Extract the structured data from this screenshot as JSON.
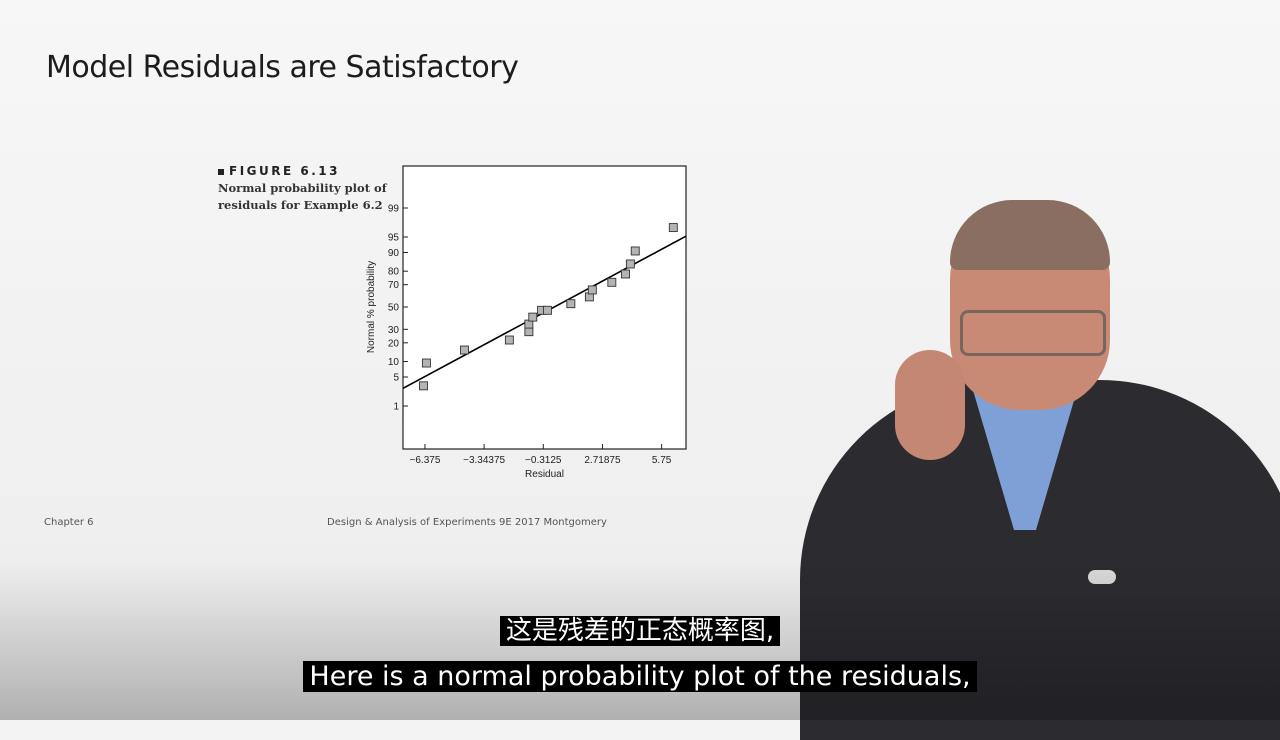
{
  "slide": {
    "title": "Model Residuals are Satisfactory",
    "footer_left": "Chapter 6",
    "footer_center": "Design & Analysis of Experiments 9E 2017 Montgomery"
  },
  "figure": {
    "number": "FIGURE 6.13",
    "caption": "Normal probability plot of residuals for Example 6.2"
  },
  "subtitles": {
    "chinese": "这是残差的正态概率图,",
    "english": "Here is a normal probability plot of the residuals,"
  },
  "colors": {
    "text": "#1c1c1c",
    "marker_fill": "#b4b4b4",
    "marker_stroke": "#333333",
    "subtitle": "#ffffff"
  },
  "chart_data": {
    "type": "scatter",
    "title": "",
    "xlabel": "Residual",
    "ylabel": "Normal % probability",
    "x_ticks": [
      -6.375,
      -3.34375,
      -0.3125,
      2.71875,
      5.75
    ],
    "x_tick_labels": [
      "−6.375",
      "−3.34375",
      "−0.3125",
      "2.71875",
      "5.75"
    ],
    "y_ticks": [
      1,
      5,
      10,
      20,
      30,
      50,
      70,
      80,
      90,
      95,
      99
    ],
    "y_tick_labels": [
      "1",
      "5",
      "10",
      "20",
      "30",
      "50",
      "70",
      "80",
      "90",
      "95",
      "99"
    ],
    "xlim": [
      -7.5,
      7.0
    ],
    "y_scale": "normal-probability",
    "grid": false,
    "points": [
      {
        "x": -6.45,
        "y": 3.2
      },
      {
        "x": -6.3,
        "y": 9.4
      },
      {
        "x": -4.35,
        "y": 15.6
      },
      {
        "x": -2.05,
        "y": 21.9
      },
      {
        "x": -1.05,
        "y": 28.1
      },
      {
        "x": -1.05,
        "y": 34.4
      },
      {
        "x": -0.85,
        "y": 40.6
      },
      {
        "x": -0.4,
        "y": 46.9
      },
      {
        "x": -0.1,
        "y": 46.9
      },
      {
        "x": 1.1,
        "y": 53.1
      },
      {
        "x": 2.05,
        "y": 59.4
      },
      {
        "x": 2.2,
        "y": 65.6
      },
      {
        "x": 3.2,
        "y": 71.9
      },
      {
        "x": 3.9,
        "y": 78.1
      },
      {
        "x": 4.15,
        "y": 84.4
      },
      {
        "x": 4.4,
        "y": 90.6
      },
      {
        "x": 6.35,
        "y": 96.9
      }
    ],
    "fit_line": {
      "x": [
        -7.5,
        7.0
      ],
      "y": [
        2.8,
        95.2
      ]
    }
  }
}
